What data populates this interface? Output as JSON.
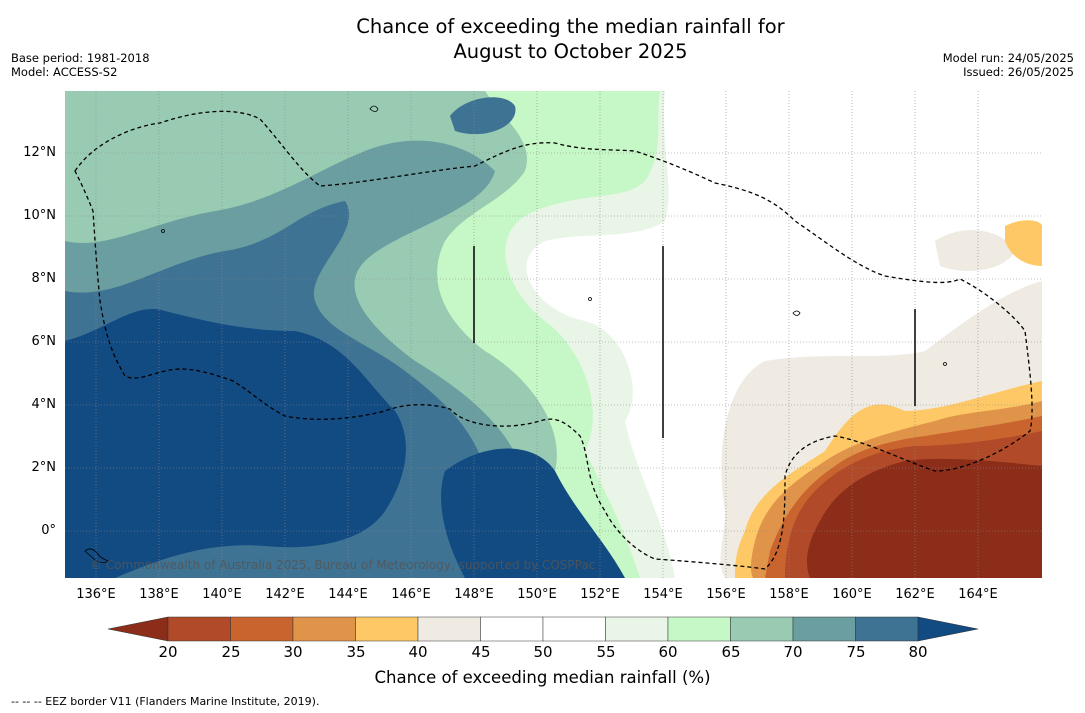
{
  "title_line1": "Chance of exceeding the median rainfall for",
  "title_line2": "August to October 2025",
  "base_period": "Base period: 1981-2018",
  "model": "Model: ACCESS-S2",
  "model_run": "Model run: 24/05/2025",
  "issued": "Issued: 26/05/2025",
  "x_ticks": [
    "136°E",
    "138°E",
    "140°E",
    "142°E",
    "144°E",
    "146°E",
    "148°E",
    "150°E",
    "152°E",
    "154°E",
    "156°E",
    "158°E",
    "160°E",
    "162°E",
    "164°E"
  ],
  "y_ticks": [
    "12°N",
    "10°N",
    "8°N",
    "6°N",
    "4°N",
    "2°N",
    "0°"
  ],
  "colorbar_ticks": [
    "20",
    "25",
    "30",
    "35",
    "40",
    "45",
    "50",
    "55",
    "60",
    "65",
    "70",
    "75",
    "80"
  ],
  "colorbar_label": "Chance of exceeding median rainfall (%)",
  "colorbar_colors": [
    "#8c2d1a",
    "#b04a28",
    "#c9642f",
    "#e0944a",
    "#fdc865",
    "#efebe3",
    "#ffffff",
    "#ffffff",
    "#e9f5e7",
    "#c6f7c6",
    "#99cbb3",
    "#6a9ea0",
    "#3e7394",
    "#124a82"
  ],
  "copyright": "© Commonwealth of Australia 2025, Bureau of Meteorology, supported by COSPPac",
  "footer": "--  --  -- EEZ border V11 (Flanders Marine Institute, 2019)."
}
